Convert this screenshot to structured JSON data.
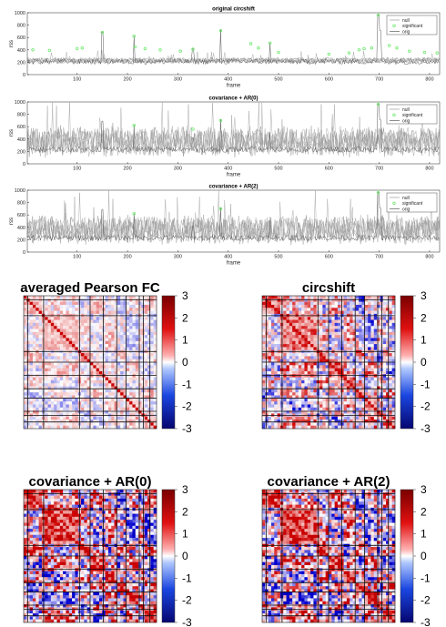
{
  "colors": {
    "null": "#9a9a9a",
    "orig": "#5a5a5a",
    "significant": "#6ee86e",
    "cmap_low": "#08088f",
    "cmap_mid": "#ffffff",
    "cmap_high": "#a10c0c"
  },
  "chart_data": [
    {
      "type": "line",
      "title": "original circshift",
      "xlabel": "frame",
      "ylabel": "rss",
      "xlim": [
        1,
        820
      ],
      "ylim": [
        0,
        1000
      ],
      "xticks": [
        100,
        200,
        300,
        400,
        500,
        600,
        700,
        800
      ],
      "yticks": [
        0,
        200,
        400,
        600,
        800,
        1000
      ],
      "legend": {
        "placement": "top-right",
        "entries": [
          "null",
          "significant",
          "orig"
        ]
      },
      "series": [
        {
          "name": "null",
          "style": "band",
          "center": 230,
          "spread": 55
        },
        {
          "name": "orig",
          "style": "line",
          "base": 210,
          "spikes": [
            [
              150,
              690
            ],
            [
              213,
              620
            ],
            [
              330,
              420
            ],
            [
              385,
              720
            ],
            [
              483,
              510
            ],
            [
              698,
              970
            ],
            [
              702,
              710
            ]
          ]
        },
        {
          "name": "significant",
          "style": "markers",
          "x": [
            12,
            45,
            100,
            110,
            150,
            213,
            215,
            235,
            265,
            305,
            330,
            385,
            445,
            460,
            483,
            500,
            600,
            640,
            660,
            670,
            685,
            698,
            720,
            735,
            760,
            790,
            815
          ],
          "y": [
            400,
            390,
            420,
            430,
            680,
            620,
            450,
            420,
            400,
            380,
            410,
            710,
            500,
            430,
            510,
            360,
            330,
            350,
            400,
            420,
            430,
            960,
            470,
            430,
            380,
            360,
            350
          ]
        }
      ]
    },
    {
      "type": "line",
      "title": "covariance + AR(0)",
      "xlabel": "frame",
      "ylabel": "rss",
      "xlim": [
        1,
        820
      ],
      "ylim": [
        0,
        1000
      ],
      "xticks": [
        100,
        200,
        300,
        400,
        500,
        600,
        700,
        800
      ],
      "yticks": [
        0,
        200,
        400,
        600,
        800,
        1000
      ],
      "legend": {
        "placement": "top-right",
        "entries": [
          "null",
          "significant",
          "orig"
        ]
      },
      "series": [
        {
          "name": "null",
          "style": "band",
          "center": 360,
          "spread": 260
        },
        {
          "name": "orig",
          "style": "line",
          "base": 230,
          "spikes": [
            [
              150,
              690
            ],
            [
              213,
              620
            ],
            [
              330,
              420
            ],
            [
              385,
              720
            ],
            [
              483,
              510
            ],
            [
              698,
              970
            ],
            [
              702,
              710
            ]
          ]
        },
        {
          "name": "significant",
          "style": "markers",
          "x": [
            213,
            330,
            385,
            698
          ],
          "y": [
            620,
            560,
            700,
            960
          ]
        }
      ]
    },
    {
      "type": "line",
      "title": "covariance + AR(2)",
      "xlabel": "frame",
      "ylabel": "rss",
      "xlim": [
        1,
        820
      ],
      "ylim": [
        0,
        1000
      ],
      "xticks": [
        100,
        200,
        300,
        400,
        500,
        600,
        700,
        800
      ],
      "yticks": [
        0,
        200,
        400,
        600,
        800,
        1000
      ],
      "legend": {
        "placement": "top-right",
        "entries": [
          "null",
          "significant",
          "orig"
        ]
      },
      "series": [
        {
          "name": "null",
          "style": "band",
          "center": 360,
          "spread": 250
        },
        {
          "name": "orig",
          "style": "line",
          "base": 230,
          "spikes": [
            [
              150,
              690
            ],
            [
              213,
              620
            ],
            [
              330,
              420
            ],
            [
              385,
              720
            ],
            [
              483,
              510
            ],
            [
              698,
              970
            ],
            [
              702,
              710
            ]
          ]
        },
        {
          "name": "significant",
          "style": "markers",
          "x": [
            213,
            385,
            698
          ],
          "y": [
            620,
            700,
            960
          ]
        }
      ]
    },
    {
      "type": "heatmap",
      "title": "averaged Pearson FC",
      "clim": [
        -3,
        3
      ],
      "colorbar_ticks": [
        "3",
        "2",
        "1",
        "0",
        "-1",
        "-2",
        "-3"
      ],
      "intensity": 0.35,
      "grid_lines": [
        0.03,
        0.15,
        0.42,
        0.5,
        0.6,
        0.7,
        0.77,
        0.87,
        0.9,
        0.95
      ]
    },
    {
      "type": "heatmap",
      "title": "circshift",
      "clim": [
        -3,
        3
      ],
      "colorbar_ticks": [
        "3",
        "2",
        "1",
        "0",
        "-1",
        "-2",
        "-3"
      ],
      "intensity": 0.7,
      "grid_lines": [
        0.03,
        0.15,
        0.42,
        0.5,
        0.6,
        0.7,
        0.77,
        0.87,
        0.9,
        0.95
      ]
    },
    {
      "type": "heatmap",
      "title": "covariance + AR(0)",
      "clim": [
        -3,
        3
      ],
      "colorbar_ticks": [
        "3",
        "2",
        "1",
        "0",
        "-1",
        "-2",
        "-3"
      ],
      "intensity": 1.0,
      "grid_lines": [
        0.03,
        0.15,
        0.42,
        0.5,
        0.6,
        0.7,
        0.77,
        0.87,
        0.9,
        0.95
      ]
    },
    {
      "type": "heatmap",
      "title": "covariance + AR(2)",
      "clim": [
        -3,
        3
      ],
      "colorbar_ticks": [
        "3",
        "2",
        "1",
        "0",
        "-1",
        "-2",
        "-3"
      ],
      "intensity": 1.0,
      "grid_lines": [
        0.03,
        0.15,
        0.42,
        0.5,
        0.6,
        0.7,
        0.77,
        0.87,
        0.9,
        0.95
      ]
    }
  ]
}
